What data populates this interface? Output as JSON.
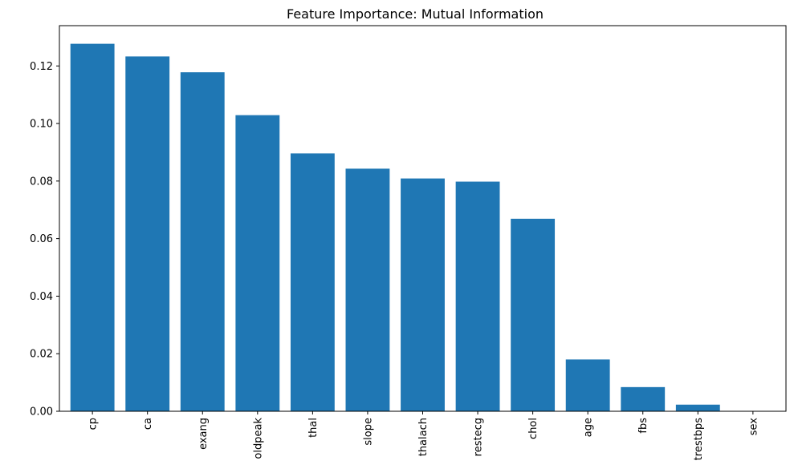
{
  "chart_data": {
    "type": "bar",
    "title": "Feature Importance: Mutual Information",
    "xlabel": "",
    "ylabel": "",
    "categories": [
      "cp",
      "ca",
      "exang",
      "oldpeak",
      "thal",
      "slope",
      "thalach",
      "restecg",
      "chol",
      "age",
      "fbs",
      "trestbps",
      "sex"
    ],
    "values": [
      0.1277,
      0.1233,
      0.1178,
      0.1029,
      0.0896,
      0.0843,
      0.0809,
      0.0798,
      0.0669,
      0.018,
      0.0084,
      0.0023,
      0.0
    ],
    "ylim": [
      0,
      0.134
    ],
    "yticks": [
      "0.00",
      "0.02",
      "0.04",
      "0.06",
      "0.08",
      "0.10",
      "0.12"
    ],
    "bar_color": "#1f77b4",
    "grid": false,
    "legend": "none"
  }
}
